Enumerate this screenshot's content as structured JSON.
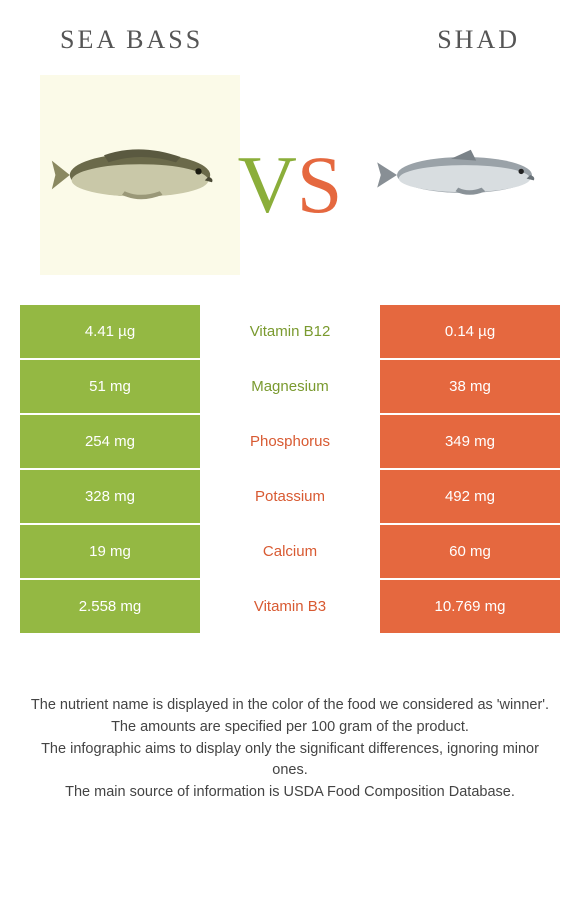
{
  "header": {
    "left_title": "Sea bass",
    "right_title": "Shad"
  },
  "vs": {
    "v": "V",
    "s": "S"
  },
  "colors": {
    "green": "#94b843",
    "orange": "#e5683f",
    "green_text": "#7a9a2f",
    "orange_text": "#d85a32"
  },
  "rows": [
    {
      "left": "4.41 µg",
      "mid": "Vitamin B12",
      "right": "0.14 µg",
      "winner": "left"
    },
    {
      "left": "51 mg",
      "mid": "Magnesium",
      "right": "38 mg",
      "winner": "left"
    },
    {
      "left": "254 mg",
      "mid": "Phosphorus",
      "right": "349 mg",
      "winner": "right"
    },
    {
      "left": "328 mg",
      "mid": "Potassium",
      "right": "492 mg",
      "winner": "right"
    },
    {
      "left": "19 mg",
      "mid": "Calcium",
      "right": "60 mg",
      "winner": "right"
    },
    {
      "left": "2.558 mg",
      "mid": "Vitamin B3",
      "right": "10.769 mg",
      "winner": "right"
    }
  ],
  "footer": {
    "line1": "The nutrient name is displayed in the color of the food we considered as 'winner'.",
    "line2": "The amounts are specified per 100 gram of the product.",
    "line3": "The infographic aims to display only the significant differences, ignoring minor ones.",
    "line4": "The main source of information is USDA Food Composition Database."
  }
}
